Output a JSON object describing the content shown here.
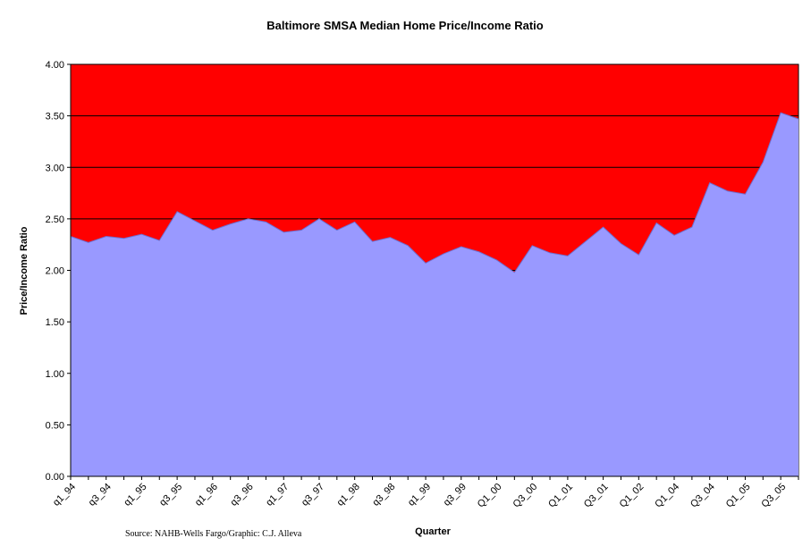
{
  "chart_data": {
    "type": "area",
    "title": "Baltimore SMSA Median Home Price/Income Ratio",
    "xlabel": "Quarter",
    "ylabel": "Price/Income Ratio",
    "ylim": [
      0,
      4
    ],
    "yticks": [
      "0.00",
      "0.50",
      "1.00",
      "1.50",
      "2.00",
      "2.50",
      "3.00",
      "3.50",
      "4.00"
    ],
    "grid": true,
    "plot_background": "#ff0000",
    "area_color": "#9999ff",
    "xtick_labels": [
      "q1_94",
      "q3_94",
      "q1_95",
      "q3_95",
      "q1_96",
      "q3_96",
      "q1_97",
      "q3_97",
      "q1_98",
      "q3_98",
      "q1_99",
      "q3_99",
      "Q1_00",
      "Q3_00",
      "Q1_01",
      "Q3_01",
      "Q1_02",
      "Q1_04",
      "Q3_04",
      "Q1_05",
      "Q3_05"
    ],
    "values": [
      2.33,
      2.27,
      2.33,
      2.31,
      2.35,
      2.29,
      2.57,
      2.48,
      2.39,
      2.45,
      2.5,
      2.47,
      2.37,
      2.39,
      2.5,
      2.39,
      2.47,
      2.28,
      2.32,
      2.24,
      2.07,
      2.16,
      2.23,
      2.18,
      2.1,
      1.98,
      2.24,
      2.17,
      2.14,
      2.28,
      2.42,
      2.26,
      2.15,
      2.46,
      2.34,
      2.42,
      2.85,
      2.77,
      2.74,
      3.05,
      3.53,
      3.47
    ],
    "source": "Source: NAHB-Wells Fargo/Graphic: C.J. Alleva"
  }
}
